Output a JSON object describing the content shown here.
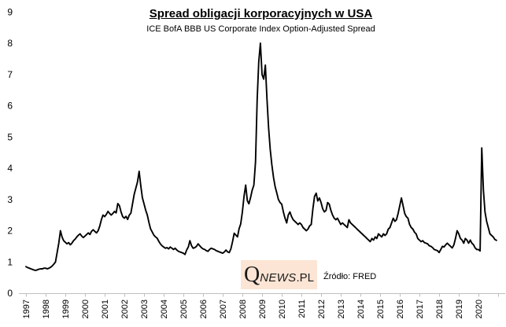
{
  "header": {
    "title": "Spread obligacji korporacyjnych w USA",
    "subtitle": "ICE BofA BBB US Corporate Index Option-Adjusted Spread"
  },
  "source": {
    "label": "Źródło: FRED"
  },
  "logo": {
    "q": "Q",
    "news": "NEWS",
    "pl": ".PL"
  },
  "colors": {
    "line": "#000000",
    "axis": "#bfbfbf",
    "label_text": "#000000",
    "logo_bg": "#fce5d4",
    "background": "#ffffff"
  },
  "chart_data": {
    "type": "line",
    "title": "Spread obligacji korporacyjnych w USA",
    "subtitle": "ICE BofA BBB US Corporate Index Option-Adjusted Spread",
    "grid": false,
    "legend": "none",
    "x_start_year": 1997,
    "x_labels": [
      "1997",
      "1998",
      "1999",
      "2000",
      "2001",
      "2002",
      "2003",
      "2004",
      "2005",
      "2006",
      "2007",
      "2008",
      "2009",
      "2010",
      "2011",
      "2012",
      "2013",
      "2014",
      "2015",
      "2016",
      "2017",
      "2018",
      "2019",
      "2020"
    ],
    "y_ticks": [
      0,
      1,
      2,
      3,
      4,
      5,
      6,
      7,
      8,
      9
    ],
    "ylim": [
      0,
      9
    ],
    "frequency": "monthly",
    "series": [
      {
        "name": "ICE BofA BBB US Corporate Index Option-Adjusted Spread",
        "values": [
          0.85,
          0.82,
          0.8,
          0.78,
          0.76,
          0.74,
          0.73,
          0.75,
          0.77,
          0.78,
          0.78,
          0.8,
          0.8,
          0.78,
          0.8,
          0.83,
          0.87,
          0.93,
          1.0,
          1.3,
          1.6,
          2.0,
          1.8,
          1.68,
          1.63,
          1.58,
          1.62,
          1.55,
          1.6,
          1.68,
          1.73,
          1.8,
          1.86,
          1.9,
          1.83,
          1.78,
          1.83,
          1.88,
          1.93,
          1.88,
          1.98,
          2.03,
          1.98,
          1.93,
          2.0,
          2.15,
          2.35,
          2.5,
          2.45,
          2.52,
          2.62,
          2.55,
          2.5,
          2.55,
          2.62,
          2.57,
          2.87,
          2.8,
          2.6,
          2.45,
          2.4,
          2.46,
          2.36,
          2.5,
          2.56,
          2.86,
          3.16,
          3.36,
          3.56,
          3.9,
          3.46,
          3.06,
          2.86,
          2.66,
          2.5,
          2.26,
          2.06,
          1.96,
          1.86,
          1.8,
          1.76,
          1.66,
          1.58,
          1.52,
          1.48,
          1.44,
          1.46,
          1.42,
          1.48,
          1.44,
          1.4,
          1.44,
          1.38,
          1.34,
          1.32,
          1.3,
          1.28,
          1.24,
          1.38,
          1.48,
          1.68,
          1.52,
          1.44,
          1.46,
          1.5,
          1.58,
          1.52,
          1.46,
          1.42,
          1.4,
          1.36,
          1.34,
          1.4,
          1.44,
          1.42,
          1.4,
          1.36,
          1.34,
          1.32,
          1.3,
          1.28,
          1.32,
          1.38,
          1.32,
          1.3,
          1.42,
          1.65,
          1.92,
          1.86,
          1.8,
          2.06,
          2.22,
          2.6,
          3.1,
          3.46,
          2.96,
          2.86,
          3.06,
          3.3,
          3.46,
          4.2,
          6.2,
          7.4,
          8.0,
          7.0,
          6.85,
          7.3,
          6.2,
          5.3,
          4.6,
          4.1,
          3.7,
          3.4,
          3.2,
          3.0,
          2.9,
          2.85,
          2.6,
          2.4,
          2.25,
          2.5,
          2.6,
          2.45,
          2.35,
          2.3,
          2.25,
          2.2,
          2.25,
          2.2,
          2.1,
          2.05,
          2.0,
          2.05,
          2.15,
          2.2,
          2.7,
          3.1,
          3.2,
          2.95,
          3.05,
          2.9,
          2.7,
          2.6,
          2.65,
          2.9,
          2.85,
          2.65,
          2.5,
          2.4,
          2.35,
          2.4,
          2.3,
          2.2,
          2.25,
          2.2,
          2.15,
          2.1,
          2.35,
          2.25,
          2.2,
          2.15,
          2.1,
          2.05,
          2.0,
          1.95,
          1.9,
          1.85,
          1.8,
          1.75,
          1.7,
          1.65,
          1.75,
          1.7,
          1.8,
          1.75,
          1.9,
          1.85,
          1.8,
          1.9,
          1.85,
          1.9,
          2.05,
          2.1,
          2.25,
          2.4,
          2.3,
          2.35,
          2.55,
          2.8,
          3.05,
          2.8,
          2.55,
          2.45,
          2.4,
          2.2,
          2.1,
          2.05,
          1.95,
          1.9,
          1.75,
          1.7,
          1.65,
          1.68,
          1.62,
          1.6,
          1.58,
          1.52,
          1.5,
          1.46,
          1.4,
          1.38,
          1.36,
          1.3,
          1.4,
          1.5,
          1.48,
          1.55,
          1.6,
          1.55,
          1.5,
          1.45,
          1.55,
          1.75,
          2.0,
          1.9,
          1.75,
          1.7,
          1.6,
          1.75,
          1.7,
          1.6,
          1.7,
          1.6,
          1.55,
          1.45,
          1.4,
          1.4,
          1.35,
          4.65,
          3.3,
          2.6,
          2.3,
          2.1,
          1.9,
          1.85,
          1.8,
          1.72,
          1.69
        ]
      }
    ]
  }
}
